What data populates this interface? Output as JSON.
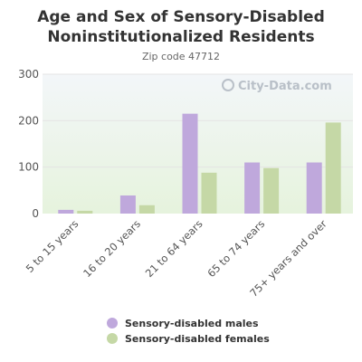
{
  "title": "Age and Sex of Sensory-Disabled Noninstitutionalized Residents",
  "subtitle": "Zip code 47712",
  "watermark": "City-Data.com",
  "colors": {
    "males": "#bfa8dc",
    "females": "#c5d8a6",
    "grid": "#e4e4e4",
    "plot_bg_top": "#f3f6f9",
    "plot_bg_bottom": "#e6f3dd"
  },
  "chart_data": {
    "type": "bar",
    "title": "Age and Sex of Sensory-Disabled Noninstitutionalized Residents",
    "subtitle": "Zip code 47712",
    "xlabel": "",
    "ylabel": "",
    "categories": [
      "5 to 15 years",
      "16 to 20 years",
      "21 to 64 years",
      "65 to 74 years",
      "75+ years and over"
    ],
    "series": [
      {
        "name": "Sensory-disabled males",
        "values": [
          8,
          39,
          215,
          110,
          110
        ]
      },
      {
        "name": "Sensory-disabled females",
        "values": [
          6,
          18,
          88,
          98,
          196
        ]
      }
    ],
    "ylim": [
      0,
      300
    ],
    "yticks": [
      0,
      100,
      200,
      300
    ],
    "grid": true,
    "legend_position": "bottom"
  }
}
